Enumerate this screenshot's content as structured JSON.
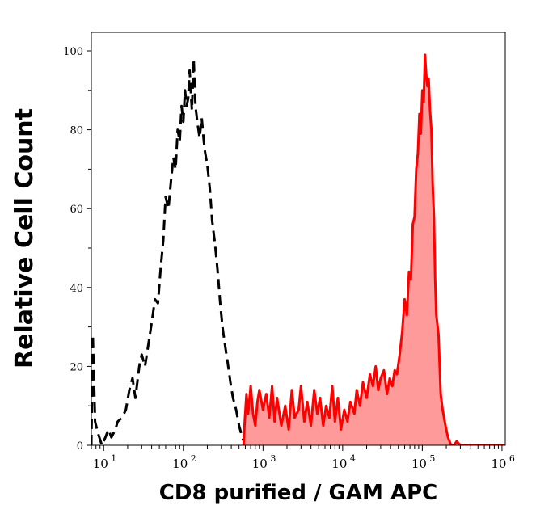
{
  "chart_data": {
    "type": "area",
    "xscale": "log",
    "xlabel": "CD8 purified / GAM APC",
    "ylabel": "Relative Cell Count",
    "xlim": [
      7,
      1100000
    ],
    "ylim": [
      0,
      100
    ],
    "x_ticks": [
      {
        "base": "10",
        "exp": "1",
        "value": 10
      },
      {
        "base": "10",
        "exp": "2",
        "value": 100
      },
      {
        "base": "10",
        "exp": "3",
        "value": 1000
      },
      {
        "base": "10",
        "exp": "4",
        "value": 10000
      },
      {
        "base": "10",
        "exp": "5",
        "value": 100000
      },
      {
        "base": "10",
        "exp": "6",
        "value": 1000000
      }
    ],
    "y_ticks": [
      "0",
      "20",
      "40",
      "60",
      "80",
      "100"
    ],
    "y_tick_values": [
      0,
      20,
      40,
      60,
      80,
      100
    ],
    "grid": false,
    "series": [
      {
        "style": "dashed",
        "color": "#000000",
        "fill": "none",
        "points": [
          [
            7,
            0
          ],
          [
            7.3,
            28
          ],
          [
            7.8,
            6
          ],
          [
            8.5,
            3
          ],
          [
            9.5,
            0
          ],
          [
            10.5,
            2
          ],
          [
            11.5,
            4
          ],
          [
            12.5,
            2
          ],
          [
            14,
            4
          ],
          [
            15,
            6
          ],
          [
            17,
            7
          ],
          [
            19,
            9
          ],
          [
            21,
            14
          ],
          [
            23,
            17
          ],
          [
            25,
            12
          ],
          [
            28,
            20
          ],
          [
            30,
            23
          ],
          [
            33,
            20
          ],
          [
            36,
            25
          ],
          [
            40,
            31
          ],
          [
            44,
            37
          ],
          [
            48,
            36
          ],
          [
            52,
            45
          ],
          [
            56,
            52
          ],
          [
            60,
            63
          ],
          [
            65,
            60
          ],
          [
            70,
            67
          ],
          [
            75,
            73
          ],
          [
            80,
            70
          ],
          [
            85,
            80
          ],
          [
            90,
            77
          ],
          [
            95,
            86
          ],
          [
            100,
            82
          ],
          [
            105,
            90
          ],
          [
            110,
            86
          ],
          [
            115,
            88
          ],
          [
            120,
            95
          ],
          [
            128,
            85
          ],
          [
            135,
            98
          ],
          [
            142,
            86
          ],
          [
            150,
            82
          ],
          [
            160,
            78
          ],
          [
            170,
            83
          ],
          [
            185,
            75
          ],
          [
            200,
            71
          ],
          [
            215,
            65
          ],
          [
            230,
            57
          ],
          [
            250,
            51
          ],
          [
            270,
            44
          ],
          [
            290,
            36
          ],
          [
            310,
            30
          ],
          [
            330,
            26
          ],
          [
            360,
            21
          ],
          [
            390,
            16
          ],
          [
            420,
            12
          ],
          [
            460,
            9
          ],
          [
            500,
            5
          ],
          [
            550,
            2
          ],
          [
            600,
            0
          ]
        ]
      },
      {
        "style": "solid",
        "color": "#ff0000",
        "fill": "#ff9a9a",
        "points": [
          [
            570,
            0
          ],
          [
            590,
            6
          ],
          [
            620,
            13
          ],
          [
            650,
            8
          ],
          [
            700,
            15
          ],
          [
            750,
            8
          ],
          [
            800,
            5
          ],
          [
            850,
            11
          ],
          [
            900,
            14
          ],
          [
            1000,
            9
          ],
          [
            1100,
            13
          ],
          [
            1200,
            7
          ],
          [
            1300,
            15
          ],
          [
            1400,
            6
          ],
          [
            1500,
            12
          ],
          [
            1700,
            5
          ],
          [
            1900,
            10
          ],
          [
            2100,
            4
          ],
          [
            2300,
            14
          ],
          [
            2500,
            7
          ],
          [
            2800,
            9
          ],
          [
            3000,
            15
          ],
          [
            3300,
            6
          ],
          [
            3600,
            11
          ],
          [
            4000,
            5
          ],
          [
            4400,
            14
          ],
          [
            4800,
            8
          ],
          [
            5200,
            12
          ],
          [
            5700,
            5
          ],
          [
            6200,
            10
          ],
          [
            6800,
            7
          ],
          [
            7400,
            15
          ],
          [
            8000,
            6
          ],
          [
            8700,
            12
          ],
          [
            9500,
            4
          ],
          [
            10500,
            9
          ],
          [
            11500,
            6
          ],
          [
            12500,
            11
          ],
          [
            14000,
            8
          ],
          [
            15000,
            14
          ],
          [
            16500,
            10
          ],
          [
            18000,
            16
          ],
          [
            20000,
            12
          ],
          [
            22000,
            18
          ],
          [
            24000,
            15
          ],
          [
            26000,
            20
          ],
          [
            28000,
            14
          ],
          [
            30000,
            17
          ],
          [
            33000,
            19
          ],
          [
            36000,
            13
          ],
          [
            39000,
            17
          ],
          [
            42000,
            15
          ],
          [
            45000,
            19
          ],
          [
            48000,
            18
          ],
          [
            52000,
            23
          ],
          [
            56000,
            29
          ],
          [
            60000,
            37
          ],
          [
            64000,
            33
          ],
          [
            68000,
            44
          ],
          [
            72000,
            42
          ],
          [
            76000,
            56
          ],
          [
            80000,
            58
          ],
          [
            84000,
            70
          ],
          [
            88000,
            74
          ],
          [
            92000,
            84
          ],
          [
            96000,
            79
          ],
          [
            100000,
            90
          ],
          [
            104000,
            87
          ],
          [
            108000,
            99
          ],
          [
            112000,
            94
          ],
          [
            116000,
            91
          ],
          [
            120000,
            93
          ],
          [
            125000,
            85
          ],
          [
            130000,
            80
          ],
          [
            135000,
            66
          ],
          [
            140000,
            58
          ],
          [
            145000,
            42
          ],
          [
            150000,
            33
          ],
          [
            160000,
            28
          ],
          [
            170000,
            13
          ],
          [
            180000,
            9
          ],
          [
            195000,
            5
          ],
          [
            210000,
            2
          ],
          [
            230000,
            0
          ],
          [
            250000,
            0
          ],
          [
            270000,
            1
          ],
          [
            300000,
            0
          ],
          [
            400000,
            0
          ],
          [
            600000,
            0
          ],
          [
            900000,
            0
          ],
          [
            1100000,
            0
          ]
        ]
      }
    ]
  }
}
